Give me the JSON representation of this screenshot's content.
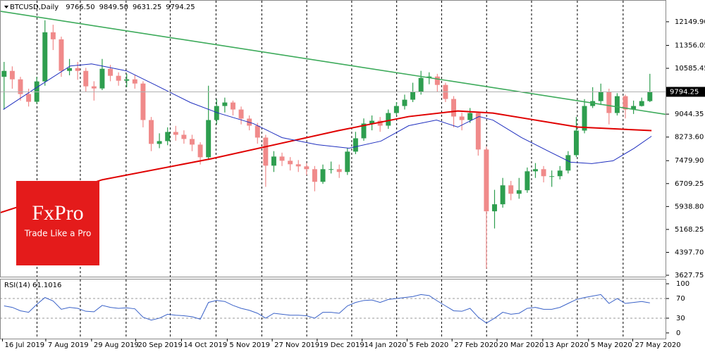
{
  "chart_data": [
    {
      "type": "candlestick",
      "title": "BTCUSD,Daily",
      "header_values": [
        {
          "value": 9766.5,
          "label": "9766.50"
        },
        {
          "value": 9849.5,
          "label": "9849.50"
        },
        {
          "value": 9631.25,
          "label": "9631.25"
        },
        9794.25
      ],
      "up_color": "#2e9e4f",
      "down_color": "#f08a8a",
      "open": [
        10300,
        10498,
        10215,
        9719,
        9460,
        10144,
        11796,
        11560,
        10498,
        10592,
        10498,
        9979,
        9908,
        10569,
        10333,
        10168,
        10215,
        10073,
        8846,
        8044,
        8138,
        8445,
        8350,
        8209,
        8020,
        7595,
        8846,
        9318,
        9436,
        9200,
        8893,
        8657,
        8256,
        7312,
        7619,
        7477,
        7359,
        7288,
        7194,
        6769,
        7194,
        7194,
        7100,
        7784,
        8232,
        8728,
        8822,
        8657,
        9082,
        9318,
        9530,
        9790,
        10262,
        10309,
        10026,
        9554,
        8964,
        8846,
        9082,
        7855,
        5778,
        6014,
        6651,
        6368,
        6486,
        7123,
        7194,
        6958,
        6958,
        7147,
        7666,
        8492,
        9318,
        9483,
        9790,
        9082,
        9648,
        9200,
        9318,
        9483
      ],
      "high": [
        10800,
        10650,
        10300,
        9900,
        10300,
        12200,
        12050,
        11650,
        10900,
        10800,
        10600,
        10150,
        10900,
        10700,
        10450,
        10400,
        10350,
        10150,
        8950,
        8400,
        8600,
        8650,
        8500,
        8350,
        8100,
        10000,
        9550,
        9600,
        9500,
        9300,
        9000,
        8750,
        8350,
        7800,
        7750,
        7600,
        7500,
        7400,
        7300,
        7350,
        7450,
        7350,
        7900,
        8450,
        8900,
        9000,
        8950,
        9200,
        9450,
        9700,
        10100,
        10500,
        10450,
        10400,
        10100,
        9650,
        9100,
        9250,
        9100,
        7950,
        6500,
        6900,
        6800,
        6900,
        7250,
        7400,
        7300,
        7150,
        7300,
        7800,
        8950,
        9550,
        9950,
        10070,
        9900,
        9750,
        9700,
        9500,
        9600,
        10400
      ],
      "low": [
        9200,
        9900,
        9500,
        9300,
        9400,
        10000,
        11200,
        10300,
        10350,
        10200,
        9800,
        9500,
        9850,
        10150,
        10000,
        9950,
        9900,
        8600,
        7800,
        7900,
        8000,
        8150,
        8050,
        7800,
        7350,
        7500,
        8700,
        9100,
        9000,
        8700,
        8500,
        8050,
        6600,
        7100,
        7300,
        7150,
        7100,
        7000,
        6450,
        6700,
        7050,
        6900,
        7000,
        7700,
        8150,
        8500,
        8450,
        8550,
        9000,
        9200,
        9450,
        9700,
        10050,
        9800,
        9450,
        8600,
        8500,
        8750,
        7650,
        3850,
        5200,
        5900,
        6150,
        6200,
        6400,
        6900,
        6750,
        6600,
        6850,
        7050,
        7600,
        8400,
        9250,
        9350,
        8700,
        9000,
        8900,
        9050,
        9300,
        9450
      ],
      "close": [
        10498,
        10215,
        9719,
        9460,
        10144,
        11796,
        11560,
        10498,
        10592,
        10498,
        9979,
        9908,
        10569,
        10333,
        10168,
        10215,
        10073,
        8846,
        8044,
        8138,
        8445,
        8350,
        8209,
        8020,
        7595,
        8846,
        9318,
        9436,
        9200,
        8893,
        8657,
        8256,
        7312,
        7619,
        7477,
        7359,
        7288,
        7194,
        6769,
        7194,
        7194,
        7100,
        7784,
        8232,
        8728,
        8822,
        8657,
        9082,
        9318,
        9530,
        9790,
        10262,
        10309,
        10026,
        9554,
        8964,
        8846,
        9082,
        7855,
        5778,
        6014,
        6651,
        6368,
        6486,
        7123,
        7194,
        6958,
        6958,
        7147,
        7666,
        8492,
        9318,
        9483,
        9790,
        9082,
        9648,
        9200,
        9318,
        9483,
        9794.25
      ],
      "overlays": [
        {
          "color": "#3caa5a",
          "x": [
            0,
            81.5
          ],
          "values": [
            12504,
            9034
          ]
        },
        {
          "color": "#e00000",
          "x": [
            0,
            12.5,
            25.9,
            41.4,
            50,
            56,
            60.3,
            65.5,
            70.7,
            79.7
          ],
          "values": [
            5729,
            6838,
            7547,
            8491,
            8963,
            9152,
            9081,
            8845,
            8609,
            8491
          ]
        },
        {
          "color": "#1f2fbf",
          "x": [
            0.4,
            4.3,
            8.6,
            11.2,
            15.5,
            19,
            23.3,
            26.7,
            31,
            34.5,
            38.8,
            42.7,
            46.6,
            50,
            53.4,
            56,
            58.6,
            60.3,
            63.8,
            67.2,
            69.8,
            72.4,
            75,
            77.6,
            79.7
          ],
          "values": [
            9199,
            9907,
            10663,
            10733,
            10498,
            10025,
            9435,
            9081,
            8727,
            8255,
            8019,
            7901,
            8137,
            8656,
            8845,
            8609,
            8963,
            8845,
            8255,
            7783,
            7429,
            7382,
            7476,
            7901,
            8302
          ]
        }
      ],
      "xlim": [
        0,
        81.5
      ],
      "xticks": [
        {
          "value": 0.3,
          "label": "16 Jul 2019"
        },
        {
          "value": 5.6,
          "label": "7 Aug 2019"
        },
        {
          "value": 11.2,
          "label": "29 Aug 2019"
        },
        {
          "value": 16.6,
          "label": "20 Sep 2019"
        },
        {
          "value": 22.2,
          "label": "14 Oct 2019"
        },
        {
          "value": 27.8,
          "label": "5 Nov 2019"
        },
        {
          "value": 33.3,
          "label": "27 Nov 2019"
        },
        {
          "value": 38.8,
          "label": "19 Dec 2019"
        },
        {
          "value": 44.3,
          "label": "14 Jan 2020"
        },
        {
          "value": 49.8,
          "label": "5 Feb 2020"
        },
        {
          "value": 55.3,
          "label": "27 Feb 2020"
        },
        {
          "value": 60.8,
          "label": "20 Mar 2020"
        },
        {
          "value": 66.4,
          "label": "13 Apr 2020"
        },
        {
          "value": 72,
          "label": "5 May 2020"
        },
        {
          "value": 77.4,
          "label": "27 May 2020"
        }
      ],
      "ylim": [
        3580,
        12858
      ],
      "yticks": [
        {
          "value": 12149.9,
          "label": "12149.90"
        },
        11356.05,
        10585.45,
        9044.35,
        {
          "value": 8273.6,
          "label": "8273.60"
        },
        {
          "value": 7479.9,
          "label": "7479.90"
        },
        6709.25,
        {
          "value": 5938.8,
          "label": "5938.80"
        },
        5168.25,
        {
          "value": 4397.7,
          "label": "4397.70"
        },
        3627.75
      ],
      "grid": true
    },
    {
      "type": "line",
      "title": "RSI(14) 61.1016",
      "color": "#3a62c8",
      "values": [
        55,
        52,
        45,
        42,
        58,
        72,
        65,
        48,
        52,
        50,
        44,
        43,
        56,
        52,
        50,
        51,
        49,
        32,
        26,
        30,
        38,
        36,
        35,
        33,
        28,
        62,
        66,
        64,
        56,
        50,
        46,
        40,
        30,
        40,
        38,
        36,
        36,
        35,
        30,
        42,
        42,
        40,
        55,
        62,
        66,
        67,
        62,
        68,
        70,
        72,
        74,
        78,
        76,
        65,
        55,
        45,
        44,
        50,
        32,
        20,
        30,
        42,
        38,
        40,
        50,
        52,
        48,
        48,
        52,
        60,
        68,
        72,
        75,
        78,
        60,
        70,
        60,
        62,
        64,
        61.1016
      ],
      "xlim": [
        0,
        81.5
      ],
      "ylim": [
        -11.6,
        108.7
      ],
      "yticks": [
        100,
        70,
        30,
        0
      ],
      "levels": [
        70,
        30
      ]
    }
  ],
  "logo": {
    "brand": "FxPro",
    "tagline": "Trade Like a Pro"
  }
}
